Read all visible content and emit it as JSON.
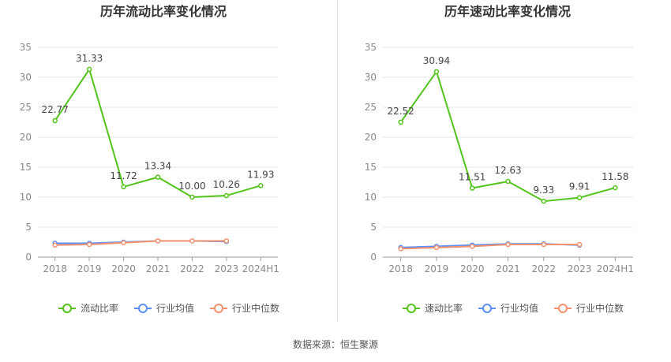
{
  "source_text": "数据来源：恒生聚源",
  "colors": {
    "main": "#52c41a",
    "avg": "#5b8ff9",
    "median": "#f4926e",
    "grid": "#e5e5e5",
    "axis": "#888888"
  },
  "chart_data": [
    {
      "type": "line",
      "title": "历年流动比率变化情况",
      "categories": [
        "2018",
        "2019",
        "2020",
        "2021",
        "2022",
        "2023",
        "2024H1"
      ],
      "ylim": [
        0,
        35
      ],
      "yticks": [
        0,
        5,
        10,
        15,
        20,
        25,
        30,
        35
      ],
      "grid": true,
      "legend_position": "bottom",
      "series": [
        {
          "name": "流动比率",
          "role": "main",
          "values": [
            22.77,
            31.33,
            11.72,
            13.34,
            10.0,
            10.26,
            11.93
          ],
          "labels": [
            "22.77",
            "31.33",
            "11.72",
            "13.34",
            "10.00",
            "10.26",
            "11.93"
          ]
        },
        {
          "name": "行业均值",
          "role": "avg",
          "values": [
            2.3,
            2.3,
            2.5,
            2.7,
            2.7,
            2.6,
            null
          ]
        },
        {
          "name": "行业中位数",
          "role": "median",
          "values": [
            2.0,
            2.1,
            2.4,
            2.7,
            2.7,
            2.7,
            null
          ]
        }
      ]
    },
    {
      "type": "line",
      "title": "历年速动比率变化情况",
      "categories": [
        "2018",
        "2019",
        "2020",
        "2021",
        "2022",
        "2023",
        "2024H1"
      ],
      "ylim": [
        0,
        35
      ],
      "yticks": [
        0,
        5,
        10,
        15,
        20,
        25,
        30,
        35
      ],
      "grid": true,
      "legend_position": "bottom",
      "series": [
        {
          "name": "速动比率",
          "role": "main",
          "values": [
            22.52,
            30.94,
            11.51,
            12.63,
            9.33,
            9.91,
            11.58
          ],
          "labels": [
            "22.52",
            "30.94",
            "11.51",
            "12.63",
            "9.33",
            "9.91",
            "11.58"
          ]
        },
        {
          "name": "行业均值",
          "role": "avg",
          "values": [
            1.6,
            1.8,
            2.0,
            2.2,
            2.2,
            2.0,
            null
          ]
        },
        {
          "name": "行业中位数",
          "role": "median",
          "values": [
            1.4,
            1.6,
            1.8,
            2.1,
            2.1,
            2.1,
            null
          ]
        }
      ]
    }
  ]
}
